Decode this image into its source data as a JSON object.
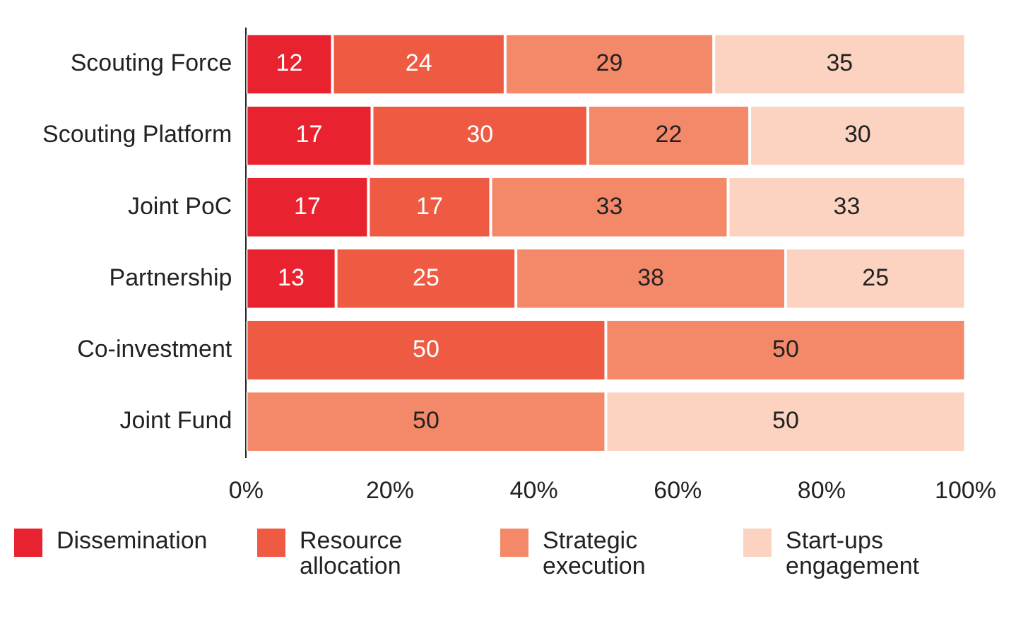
{
  "chart_data": {
    "type": "bar",
    "orientation": "horizontal",
    "stacked": true,
    "categories": [
      "Scouting Force",
      "Scouting Platform",
      "Joint PoC",
      "Partnership",
      "Co-investment",
      "Joint Fund"
    ],
    "series": [
      {
        "name": "Dissemination",
        "color": "#e8232f",
        "values": [
          12,
          17.5,
          17,
          12.5,
          null,
          null
        ],
        "value_labels": [
          "12",
          "17",
          "17",
          "13",
          null,
          null
        ]
      },
      {
        "name": "Resource allocation",
        "color": "#ef5a43",
        "values": [
          24,
          30,
          17,
          25,
          50,
          null
        ],
        "value_labels": [
          "24",
          "30",
          "17",
          "25",
          "50",
          null
        ]
      },
      {
        "name": "Strategic execution",
        "color": "#f4896a",
        "values": [
          29,
          22.5,
          33,
          37.5,
          50,
          50
        ],
        "value_labels": [
          "29",
          "22",
          "33",
          "38",
          "50",
          "50"
        ]
      },
      {
        "name": "Start-ups engagement",
        "color": "#fbd3c0",
        "values": [
          35,
          30,
          33,
          25,
          null,
          50
        ],
        "value_labels": [
          "35",
          "30",
          "33",
          "25",
          null,
          "50"
        ]
      }
    ],
    "xlim": [
      0,
      100
    ],
    "xticks": [
      {
        "value": 0,
        "label": "0%"
      },
      {
        "value": 20,
        "label": "20%"
      },
      {
        "value": 40,
        "label": "40%"
      },
      {
        "value": 60,
        "label": "60%"
      },
      {
        "value": 80,
        "label": "80%"
      },
      {
        "value": 100,
        "label": "100%"
      }
    ],
    "grid": false,
    "legend": "bottom"
  }
}
